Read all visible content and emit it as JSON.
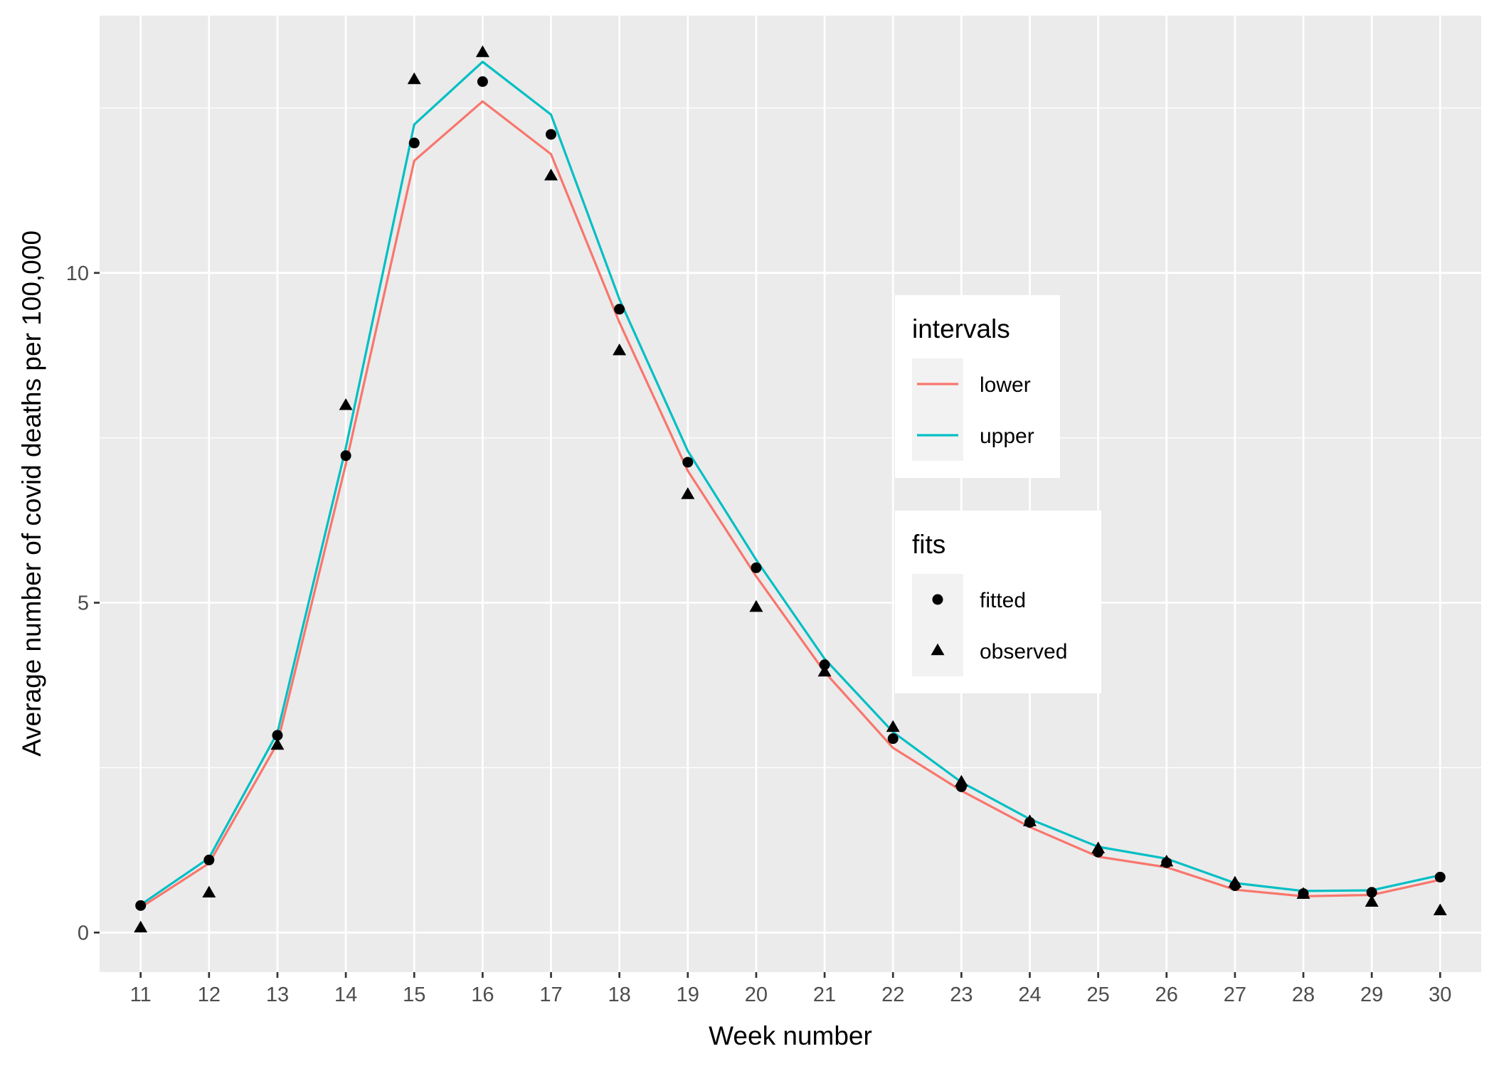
{
  "chart_data": {
    "type": "line",
    "xlabel": "Week number",
    "ylabel": "Average number of covid deaths per 100,000",
    "x": [
      11,
      12,
      13,
      14,
      15,
      16,
      17,
      18,
      19,
      20,
      21,
      22,
      23,
      24,
      25,
      26,
      27,
      28,
      29,
      30
    ],
    "xlim": [
      10.4,
      30.6
    ],
    "ylim": [
      -0.6,
      13.9
    ],
    "y_ticks": [
      0,
      5,
      10
    ],
    "grid": true,
    "panel_background": "#ebebeb",
    "legend": [
      {
        "title": "intervals",
        "entries": [
          {
            "label": "lower",
            "kind": "line",
            "color": "#f8766d"
          },
          {
            "label": "upper",
            "kind": "line",
            "color": "#00bfc4"
          }
        ]
      },
      {
        "title": "fits",
        "entries": [
          {
            "label": "fitted",
            "kind": "circle",
            "color": "#000000"
          },
          {
            "label": "observed",
            "kind": "triangle",
            "color": "#000000"
          }
        ]
      }
    ],
    "legend_position": "right-center inside",
    "series": [
      {
        "name": "lower",
        "kind": "line",
        "color": "#f8766d",
        "values": [
          0.38,
          1.05,
          2.87,
          7.1,
          11.7,
          12.6,
          11.8,
          9.25,
          7.0,
          5.4,
          3.95,
          2.8,
          2.15,
          1.6,
          1.15,
          0.99,
          0.65,
          0.55,
          0.57,
          0.8
        ]
      },
      {
        "name": "upper",
        "kind": "line",
        "color": "#00bfc4",
        "values": [
          0.42,
          1.13,
          3.03,
          7.35,
          12.25,
          13.2,
          12.4,
          9.6,
          7.3,
          5.65,
          4.15,
          3.04,
          2.28,
          1.72,
          1.3,
          1.12,
          0.75,
          0.63,
          0.64,
          0.87
        ]
      },
      {
        "name": "fitted",
        "kind": "points",
        "shape": "circle",
        "color": "#000000",
        "values": [
          0.41,
          1.1,
          2.99,
          7.23,
          11.97,
          12.9,
          12.1,
          9.45,
          7.13,
          5.53,
          4.06,
          2.94,
          2.21,
          1.67,
          1.22,
          1.06,
          0.71,
          0.59,
          0.61,
          0.84
        ]
      },
      {
        "name": "observed",
        "kind": "points",
        "shape": "triangle",
        "color": "#000000",
        "values": [
          0.07,
          0.6,
          2.84,
          7.99,
          12.93,
          13.34,
          11.47,
          8.82,
          6.64,
          4.93,
          3.95,
          3.11,
          2.28,
          1.68,
          1.27,
          1.07,
          0.75,
          0.58,
          0.46,
          0.33
        ]
      }
    ]
  }
}
